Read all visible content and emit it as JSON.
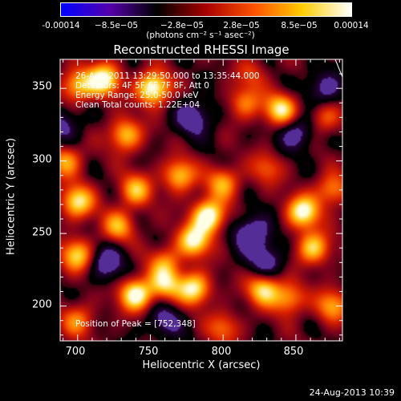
{
  "colorbar": {
    "ticks": [
      "-0.00014",
      "−8.5e−05",
      "−2.8e−05",
      "2.8e−05",
      "8.5e−05",
      "0.00014"
    ],
    "tick_values": [
      -0.00014,
      -8.5e-05,
      -2.8e-05,
      2.8e-05,
      8.5e-05,
      0.00014
    ],
    "units": "(photons cm⁻² s⁻¹ asec⁻²)",
    "colors": [
      "#0000ff",
      "#5500aa",
      "#000000",
      "#aa0000",
      "#ff5500",
      "#ffcc00",
      "#ffffff"
    ]
  },
  "chart_data": {
    "type": "heatmap",
    "title": "Reconstructed RHESSI Image",
    "xlabel": "Heliocentric X (arcsec)",
    "ylabel": "Heliocentric Y (arcsec)",
    "xlim": [
      688,
      882
    ],
    "ylim": [
      176,
      370
    ],
    "xticks": [
      700,
      750,
      800,
      850
    ],
    "yticks": [
      200,
      250,
      300,
      350
    ],
    "annotations": [
      "26-Aug-2011 13:29:50.000 to 13:35:44.000",
      "Detectors: 4F 5F 6F 7F 8F, Att 0",
      "Energy Range: 25.0-50.0 keV",
      "Clean     Total counts: 1.22E+04"
    ],
    "peak_label": "Position of Peak = [752,348]",
    "peak": [
      752,
      348
    ],
    "sources": [
      {
        "x": 752,
        "y": 350,
        "v": 1.0
      },
      {
        "x": 718,
        "y": 356,
        "v": 0.9
      },
      {
        "x": 700,
        "y": 352,
        "v": 0.7
      },
      {
        "x": 840,
        "y": 335,
        "v": 0.85
      },
      {
        "x": 815,
        "y": 340,
        "v": 0.5
      },
      {
        "x": 733,
        "y": 318,
        "v": 0.7
      },
      {
        "x": 692,
        "y": 300,
        "v": 0.6
      },
      {
        "x": 700,
        "y": 272,
        "v": 0.8
      },
      {
        "x": 740,
        "y": 280,
        "v": 0.65
      },
      {
        "x": 770,
        "y": 290,
        "v": 0.7
      },
      {
        "x": 790,
        "y": 262,
        "v": 1.0
      },
      {
        "x": 780,
        "y": 245,
        "v": 0.85
      },
      {
        "x": 800,
        "y": 285,
        "v": 0.6
      },
      {
        "x": 830,
        "y": 295,
        "v": 0.4
      },
      {
        "x": 855,
        "y": 265,
        "v": 0.9
      },
      {
        "x": 862,
        "y": 240,
        "v": 0.75
      },
      {
        "x": 700,
        "y": 235,
        "v": 0.75
      },
      {
        "x": 728,
        "y": 255,
        "v": 0.6
      },
      {
        "x": 760,
        "y": 230,
        "v": 0.5
      },
      {
        "x": 740,
        "y": 208,
        "v": 0.95
      },
      {
        "x": 760,
        "y": 215,
        "v": 0.65
      },
      {
        "x": 780,
        "y": 212,
        "v": 0.85
      },
      {
        "x": 828,
        "y": 212,
        "v": 0.8
      },
      {
        "x": 845,
        "y": 205,
        "v": 0.6
      },
      {
        "x": 875,
        "y": 280,
        "v": 0.55
      },
      {
        "x": 875,
        "y": 200,
        "v": 0.6
      },
      {
        "x": 700,
        "y": 190,
        "v": 0.5
      },
      {
        "x": 800,
        "y": 185,
        "v": 0.45
      },
      {
        "x": 820,
        "y": 360,
        "v": 0.3
      },
      {
        "x": 870,
        "y": 330,
        "v": 0.45
      }
    ],
    "negatives": [
      {
        "x": 780,
        "y": 330,
        "v": 0.5
      },
      {
        "x": 820,
        "y": 250,
        "v": 0.6
      },
      {
        "x": 850,
        "y": 320,
        "v": 0.5
      },
      {
        "x": 720,
        "y": 230,
        "v": 0.5
      },
      {
        "x": 830,
        "y": 230,
        "v": 0.45
      },
      {
        "x": 690,
        "y": 325,
        "v": 0.4
      },
      {
        "x": 760,
        "y": 190,
        "v": 0.4
      },
      {
        "x": 870,
        "y": 350,
        "v": 0.45
      }
    ]
  },
  "footer": {
    "date": "24-Aug-2013 10:39"
  }
}
